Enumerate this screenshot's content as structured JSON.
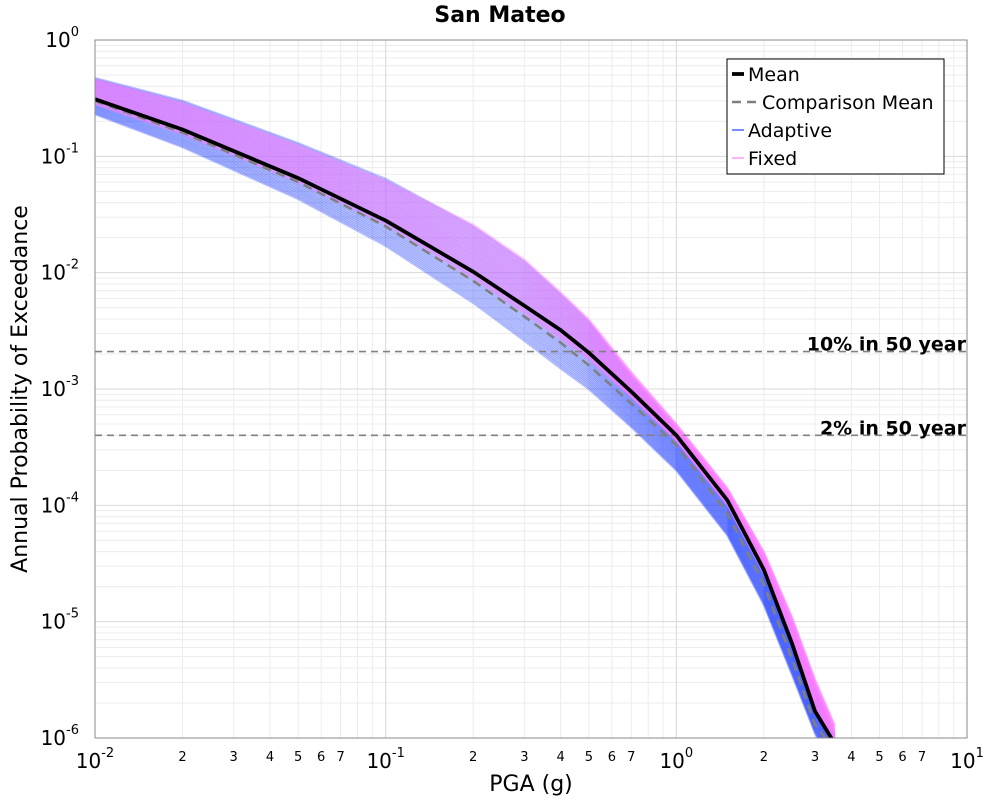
{
  "chart_data": {
    "type": "line",
    "title": "San Mateo",
    "xlabel": "PGA (g)",
    "ylabel": "Annual Probability of Exceedance",
    "xscale": "log",
    "yscale": "log",
    "xlim": [
      0.01,
      10
    ],
    "ylim": [
      1e-06,
      1
    ],
    "grid": true,
    "legend_placement": "top-right",
    "x_major_ticks": [
      {
        "base": "10",
        "exp": "-2",
        "value": 0.01
      },
      {
        "base": "10",
        "exp": "-1",
        "value": 0.1
      },
      {
        "base": "10",
        "exp": "0",
        "value": 1
      },
      {
        "base": "10",
        "exp": "1",
        "value": 10
      }
    ],
    "x_minor_ticks": [
      "2",
      "3",
      "4",
      "5",
      "6",
      "7"
    ],
    "y_major_ticks": [
      {
        "base": "10",
        "exp": "0",
        "value": 1
      },
      {
        "base": "10",
        "exp": "-1",
        "value": 0.1
      },
      {
        "base": "10",
        "exp": "-2",
        "value": 0.01
      },
      {
        "base": "10",
        "exp": "-3",
        "value": 0.001
      },
      {
        "base": "10",
        "exp": "-4",
        "value": 0.0001
      },
      {
        "base": "10",
        "exp": "-5",
        "value": 1e-05
      },
      {
        "base": "10",
        "exp": "-6",
        "value": 1e-06
      }
    ],
    "reference_lines": [
      {
        "label": "10% in 50 year",
        "y": 0.0021,
        "color": "#808080"
      },
      {
        "label": "2% in 50 year",
        "y": 0.0004,
        "color": "#808080"
      }
    ],
    "legend": [
      {
        "name": "Mean",
        "style": "solid-thick",
        "color": "#000000"
      },
      {
        "name": "Comparison Mean",
        "style": "dashed",
        "color": "#808080"
      },
      {
        "name": "Adaptive",
        "style": "solid-thin",
        "color": "#1f3fff"
      },
      {
        "name": "Fixed",
        "style": "solid-thin",
        "color": "#ff80ff"
      }
    ],
    "series": [
      {
        "name": "Mean",
        "color": "#000000",
        "x": [
          0.01,
          0.02,
          0.05,
          0.1,
          0.2,
          0.3,
          0.4,
          0.5,
          0.7,
          1.0,
          1.5,
          2.0,
          2.5,
          3.0,
          3.5
        ],
        "y": [
          0.31,
          0.17,
          0.065,
          0.028,
          0.0102,
          0.0052,
          0.0032,
          0.00205,
          0.00095,
          0.0004,
          0.00011,
          2.8e-05,
          6.5e-06,
          1.7e-06,
          9e-07
        ]
      },
      {
        "name": "Comparison Mean",
        "color": "#808080",
        "x": [
          0.01,
          0.02,
          0.05,
          0.1,
          0.2,
          0.3,
          0.4,
          0.5,
          0.7,
          1.0,
          1.5,
          2.0,
          2.5,
          3.0,
          3.5
        ],
        "y": [
          0.3,
          0.16,
          0.06,
          0.025,
          0.0085,
          0.0042,
          0.0025,
          0.0016,
          0.00075,
          0.00033,
          8.5e-05,
          2.1e-05,
          4.8e-06,
          1.3e-06,
          8e-07
        ]
      }
    ],
    "bands": [
      {
        "name": "Adaptive",
        "color": "#1f3fff",
        "x": [
          0.01,
          0.02,
          0.05,
          0.1,
          0.2,
          0.3,
          0.4,
          0.5,
          0.7,
          1.0,
          1.5,
          2.0,
          2.5,
          3.0,
          3.5
        ],
        "y_low": [
          0.23,
          0.12,
          0.043,
          0.017,
          0.0055,
          0.0026,
          0.0015,
          0.001,
          0.00047,
          0.0002,
          5.5e-05,
          1.4e-05,
          3.5e-06,
          1.1e-06,
          5e-07
        ],
        "y_high": [
          0.47,
          0.3,
          0.13,
          0.064,
          0.025,
          0.0125,
          0.0065,
          0.0038,
          0.0013,
          0.00046,
          0.000125,
          3.5e-05,
          9.5e-06,
          2.8e-06,
          1.1e-06
        ]
      },
      {
        "name": "Fixed",
        "color": "#ff80ff",
        "x": [
          0.01,
          0.02,
          0.05,
          0.1,
          0.2,
          0.3,
          0.4,
          0.5,
          0.7,
          1.0,
          1.5,
          2.0,
          2.5,
          3.0,
          3.5
        ],
        "y_low": [
          0.28,
          0.155,
          0.06,
          0.026,
          0.009,
          0.0045,
          0.0027,
          0.0018,
          0.00085,
          0.00036,
          0.0001,
          2.6e-05,
          6.5e-06,
          1.8e-06,
          8e-07
        ],
        "y_high": [
          0.46,
          0.29,
          0.125,
          0.062,
          0.026,
          0.013,
          0.0068,
          0.004,
          0.0014,
          0.0005,
          0.00014,
          4e-05,
          1.1e-05,
          3.2e-06,
          1.3e-06
        ]
      }
    ]
  }
}
